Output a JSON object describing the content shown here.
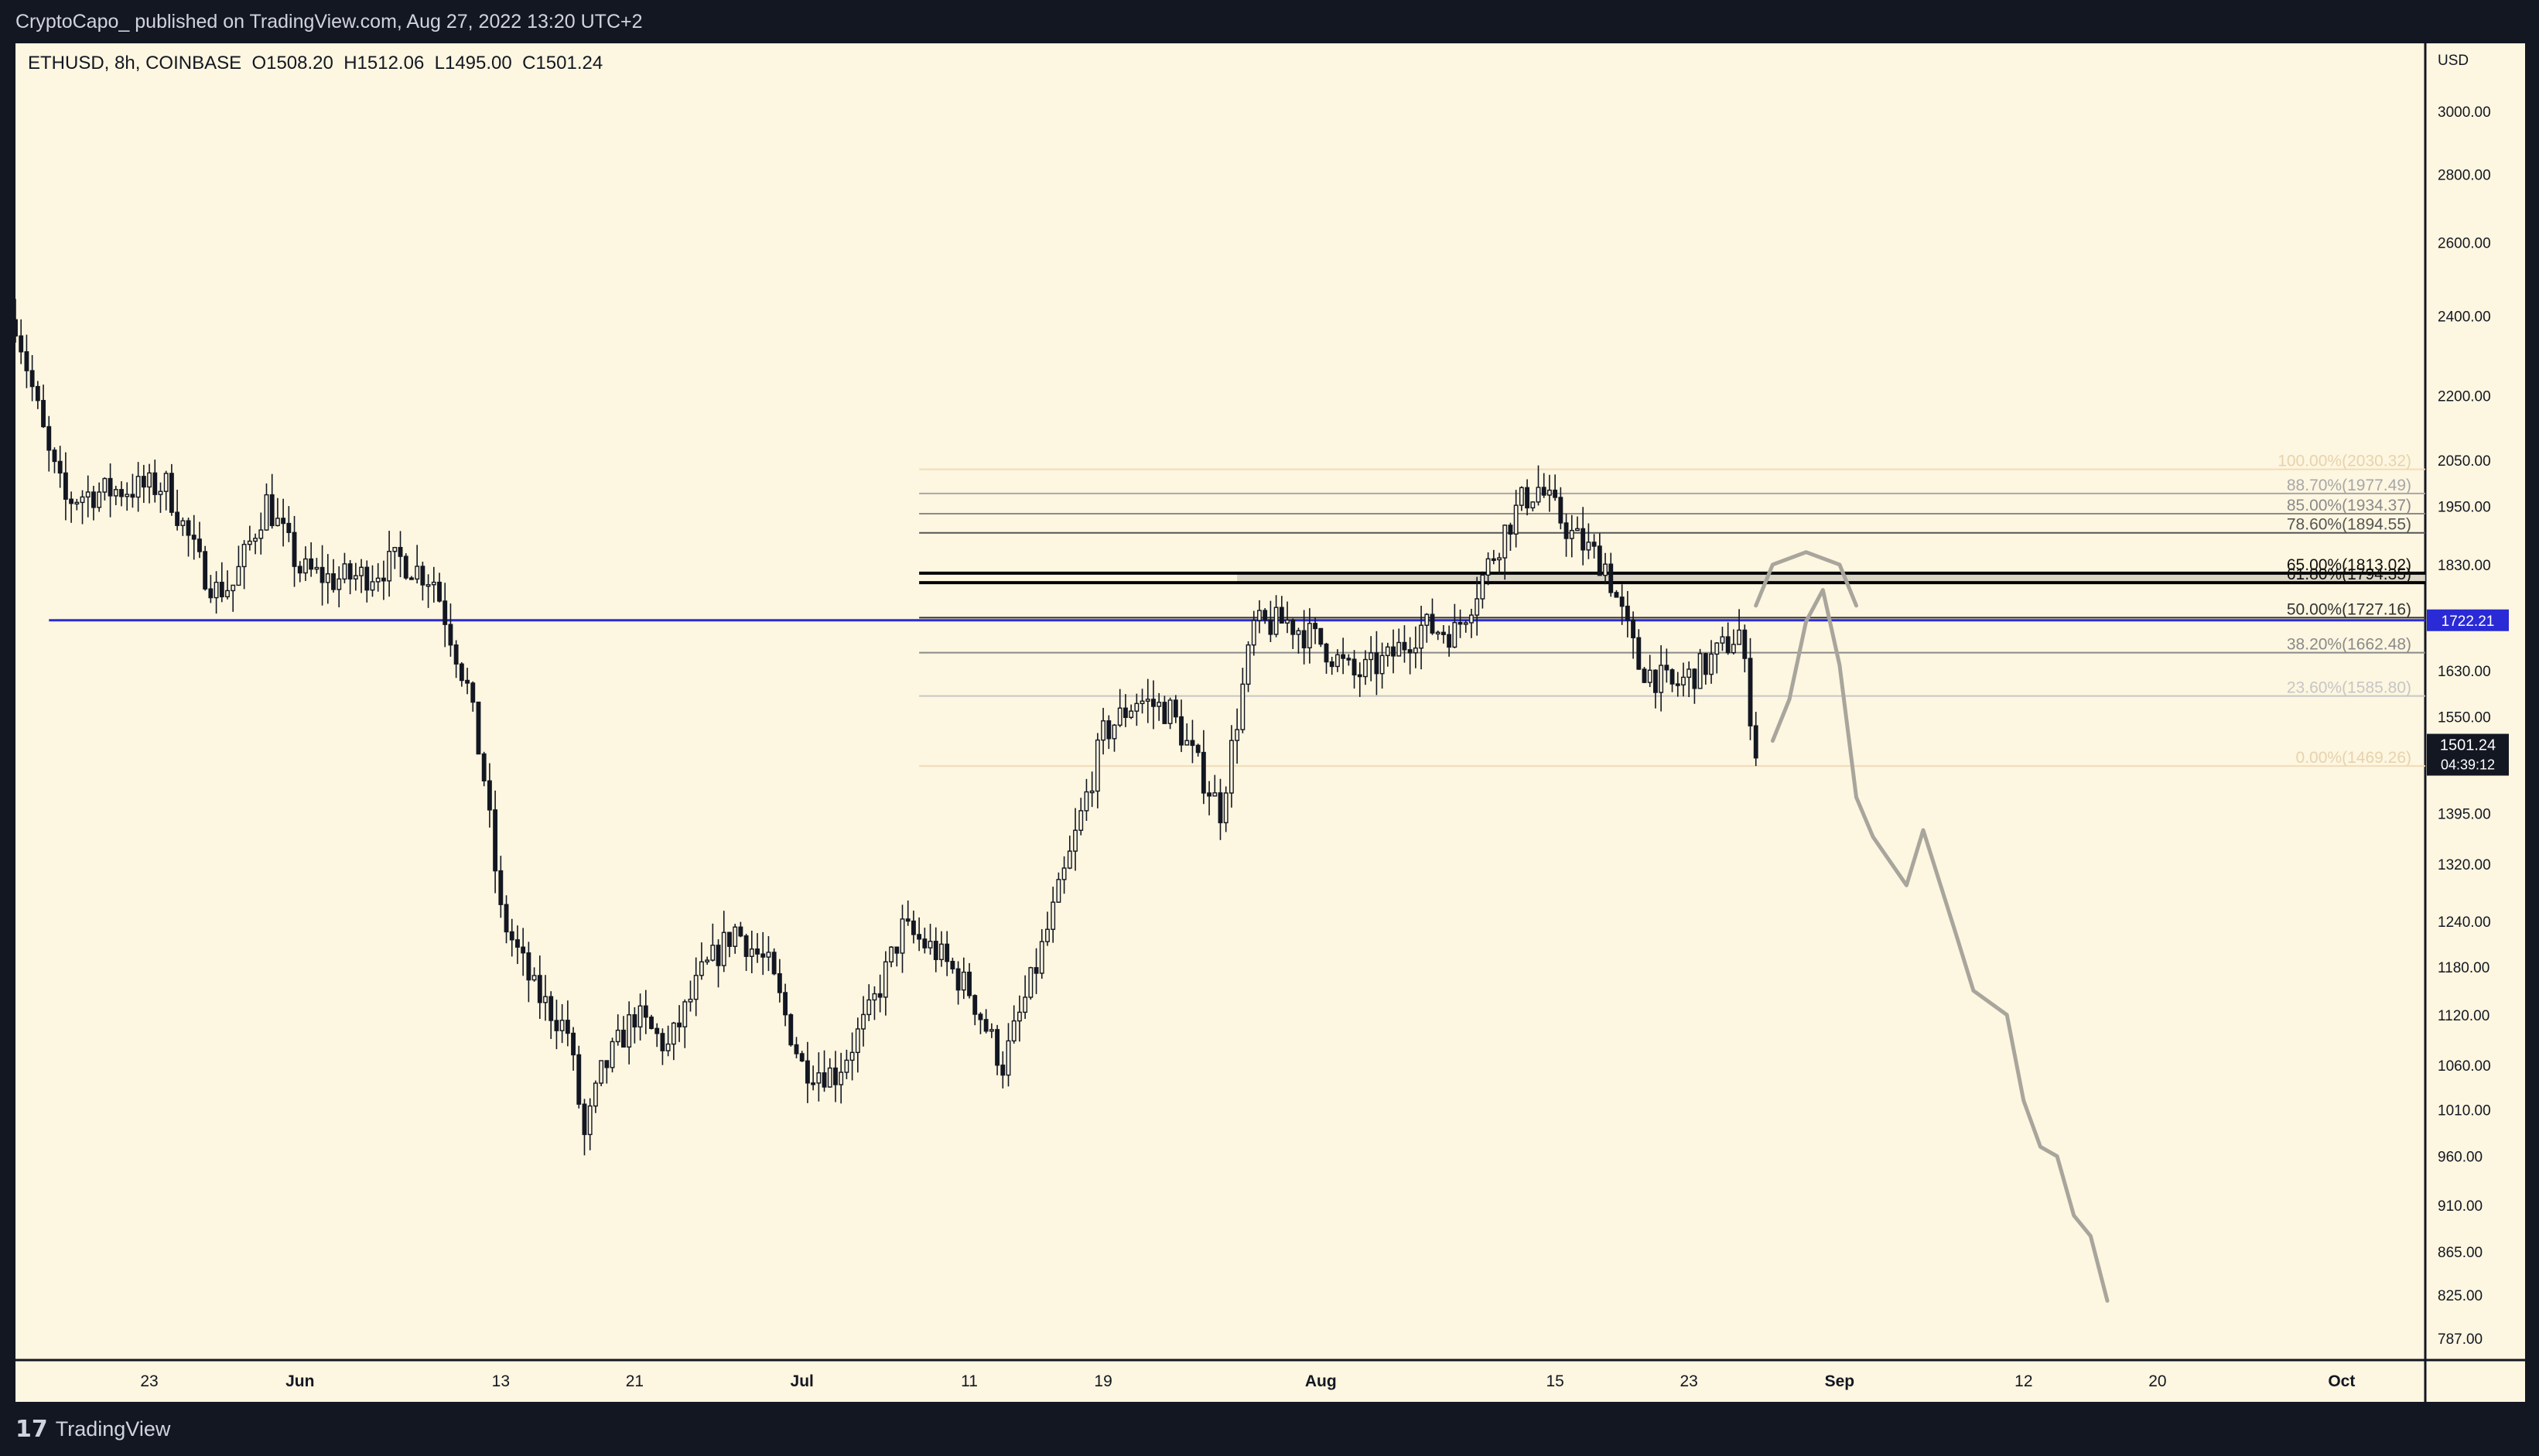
{
  "publication": {
    "author": "CryptoCapo_",
    "published_text": "published on TradingView.com, Aug 27, 2022 13:20 UTC+2"
  },
  "header": {
    "symbol": "ETHUSD",
    "interval": "8h",
    "exchange": "COINBASE",
    "open_label": "O1508.20",
    "high_label": "H1512.06",
    "low_label": "L1495.00",
    "close_label": "C1501.24"
  },
  "footer": {
    "brand": "TradingView",
    "logo_icon": "tradingview-logo-icon"
  },
  "colors": {
    "background": "#fdf6e0",
    "frame": "#131722",
    "candle": "#131722",
    "support_line": "#2a2ad6",
    "projection": "#a8a59c",
    "zone": "#d4cfc0"
  },
  "chart_data": {
    "type": "candlestick",
    "title": "",
    "xlabel": "",
    "ylabel": "",
    "currency": "USD",
    "y_scale": "log",
    "ylim": [
      770,
      3150
    ],
    "x_range": [
      "2022-05-15",
      "2022-10-06"
    ],
    "x_tick_labels": [
      {
        "date": "2022-05-23",
        "label": "23"
      },
      {
        "date": "2022-06-01",
        "label": "Jun"
      },
      {
        "date": "2022-06-13",
        "label": "13"
      },
      {
        "date": "2022-06-21",
        "label": "21"
      },
      {
        "date": "2022-07-01",
        "label": "Jul"
      },
      {
        "date": "2022-07-11",
        "label": "11"
      },
      {
        "date": "2022-07-19",
        "label": "19"
      },
      {
        "date": "2022-08-01",
        "label": "Aug"
      },
      {
        "date": "2022-08-15",
        "label": "15"
      },
      {
        "date": "2022-08-23",
        "label": "23"
      },
      {
        "date": "2022-09-01",
        "label": "Sep"
      },
      {
        "date": "2022-09-12",
        "label": "12"
      },
      {
        "date": "2022-09-20",
        "label": "20"
      },
      {
        "date": "2022-10-01",
        "label": "Oct"
      }
    ],
    "y_ticks": [
      "3000.00",
      "2800.00",
      "2600.00",
      "2400.00",
      "2200.00",
      "2050.00",
      "1950.00",
      "1830.00",
      "1630.00",
      "1550.00",
      "1395.00",
      "1320.00",
      "1240.00",
      "1180.00",
      "1120.00",
      "1060.00",
      "1010.00",
      "960.00",
      "910.00",
      "865.00",
      "825.00",
      "787.00"
    ],
    "last_price": {
      "value": 1501.24,
      "label": "1501.24",
      "countdown": "04:39:12"
    },
    "support": {
      "value": 1722.21,
      "label": "1722.21",
      "start": "2022-05-17"
    },
    "fib_retracement": {
      "start": "2022-07-08",
      "levels": [
        {
          "ratio": "100.00%",
          "price": 2030.32,
          "label": "100.00%(2030.32)",
          "color": "#f0dcb8"
        },
        {
          "ratio": "88.70%",
          "price": 1977.49,
          "label": "88.70%(1977.49)",
          "color": "#a7a7a7"
        },
        {
          "ratio": "85.00%",
          "price": 1934.37,
          "label": "85.00%(1934.37)",
          "color": "#8a8a8a"
        },
        {
          "ratio": "78.60%",
          "price": 1894.55,
          "label": "78.60%(1894.55)",
          "color": "#555555"
        },
        {
          "ratio": "65.00%",
          "price": 1813.02,
          "label": "65.00%(1813.02)",
          "color": "#000000"
        },
        {
          "ratio": "61.80%",
          "price": 1794.35,
          "label": "61.80%(1794.35)",
          "color": "#000000"
        },
        {
          "ratio": "50.00%",
          "price": 1727.16,
          "label": "50.00%(1727.16)",
          "color": "#333333"
        },
        {
          "ratio": "38.20%",
          "price": 1662.48,
          "label": "38.20%(1662.48)",
          "color": "#8a8a8a"
        },
        {
          "ratio": "23.60%",
          "price": 1585.8,
          "label": "23.60%(1585.80)",
          "color": "#c6c6c6"
        },
        {
          "ratio": "0.00%",
          "price": 1469.26,
          "label": "0.00%(1469.26)",
          "color": "#f0dcb8"
        }
      ]
    },
    "zone": {
      "from": "2022-07-27",
      "to": "2022-10-06",
      "low": 1794.35,
      "high": 1813.02
    },
    "path_points": [
      [
        "2022-05-15",
        2390
      ],
      [
        "2022-05-17",
        2060
      ],
      [
        "2022-05-18",
        1960
      ],
      [
        "2022-05-19",
        1975
      ],
      [
        "2022-05-21",
        1985
      ],
      [
        "2022-05-24",
        1995
      ],
      [
        "2022-05-26",
        1830
      ],
      [
        "2022-05-27",
        1780
      ],
      [
        "2022-05-28",
        1790
      ],
      [
        "2022-05-30",
        1960
      ],
      [
        "2022-06-01",
        1820
      ],
      [
        "2022-06-03",
        1800
      ],
      [
        "2022-06-05",
        1810
      ],
      [
        "2022-06-07",
        1840
      ],
      [
        "2022-06-09",
        1800
      ],
      [
        "2022-06-11",
        1600
      ],
      [
        "2022-06-12",
        1450
      ],
      [
        "2022-06-13",
        1250
      ],
      [
        "2022-06-15",
        1150
      ],
      [
        "2022-06-17",
        1100
      ],
      [
        "2022-06-18",
        980
      ],
      [
        "2022-06-19",
        1050
      ],
      [
        "2022-06-21",
        1120
      ],
      [
        "2022-06-23",
        1080
      ],
      [
        "2022-06-25",
        1170
      ],
      [
        "2022-06-27",
        1230
      ],
      [
        "2022-06-29",
        1180
      ],
      [
        "2022-07-01",
        1060
      ],
      [
        "2022-07-03",
        1050
      ],
      [
        "2022-07-05",
        1120
      ],
      [
        "2022-07-07",
        1230
      ],
      [
        "2022-07-09",
        1200
      ],
      [
        "2022-07-11",
        1150
      ],
      [
        "2022-07-13",
        1060
      ],
      [
        "2022-07-15",
        1180
      ],
      [
        "2022-07-17",
        1330
      ],
      [
        "2022-07-19",
        1520
      ],
      [
        "2022-07-21",
        1580
      ],
      [
        "2022-07-23",
        1560
      ],
      [
        "2022-07-25",
        1450
      ],
      [
        "2022-07-26",
        1400
      ],
      [
        "2022-07-28",
        1710
      ],
      [
        "2022-07-30",
        1720
      ],
      [
        "2022-08-01",
        1680
      ],
      [
        "2022-08-03",
        1620
      ],
      [
        "2022-08-05",
        1650
      ],
      [
        "2022-08-07",
        1710
      ],
      [
        "2022-08-09",
        1700
      ],
      [
        "2022-08-10",
        1760
      ],
      [
        "2022-08-12",
        1900
      ],
      [
        "2022-08-13",
        1960
      ],
      [
        "2022-08-14",
        1990
      ],
      [
        "2022-08-16",
        1890
      ],
      [
        "2022-08-18",
        1830
      ],
      [
        "2022-08-20",
        1640
      ],
      [
        "2022-08-22",
        1600
      ],
      [
        "2022-08-24",
        1640
      ],
      [
        "2022-08-26",
        1700
      ],
      [
        "2022-08-27",
        1495
      ]
    ],
    "projection_curve": [
      [
        "2022-08-28",
        1510
      ],
      [
        "2022-08-29",
        1580
      ],
      [
        "2022-08-30",
        1720
      ],
      [
        "2022-08-31",
        1780
      ],
      [
        "2022-09-01",
        1640
      ],
      [
        "2022-09-02",
        1420
      ],
      [
        "2022-09-03",
        1360
      ],
      [
        "2022-09-05",
        1290
      ],
      [
        "2022-09-06",
        1370
      ],
      [
        "2022-09-08",
        1220
      ],
      [
        "2022-09-09",
        1150
      ],
      [
        "2022-09-11",
        1120
      ],
      [
        "2022-09-12",
        1020
      ],
      [
        "2022-09-13",
        970
      ],
      [
        "2022-09-14",
        960
      ],
      [
        "2022-09-15",
        900
      ],
      [
        "2022-09-16",
        880
      ],
      [
        "2022-09-17",
        820
      ]
    ],
    "projection_cap": [
      [
        "2022-08-27",
        1750
      ],
      [
        "2022-08-28",
        1830
      ],
      [
        "2022-08-30",
        1855
      ],
      [
        "2022-09-01",
        1830
      ],
      [
        "2022-09-02",
        1750
      ]
    ]
  }
}
